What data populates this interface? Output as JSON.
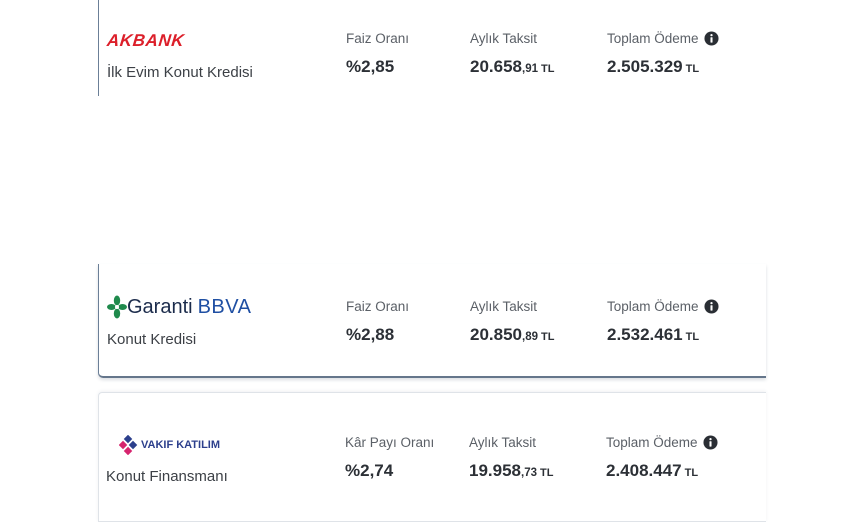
{
  "loans": [
    {
      "bank": "AKBANK",
      "product": "İlk Evim Konut Kredisi",
      "rate_label": "Faiz Oranı",
      "rate_value": "%2,85",
      "installment_label": "Aylık Taksit",
      "installment_int": "20.658",
      "installment_frac": ",91",
      "installment_unit": "TL",
      "total_label": "Toplam Ödeme",
      "total_value": "2.505.329",
      "total_unit": "TL"
    },
    {
      "bank_name": "Garanti",
      "bank_suffix": "BBVA",
      "product": "Konut Kredisi",
      "rate_label": "Faiz Oranı",
      "rate_value": "%2,88",
      "installment_label": "Aylık Taksit",
      "installment_int": "20.850",
      "installment_frac": ",89",
      "installment_unit": "TL",
      "total_label": "Toplam Ödeme",
      "total_value": "2.532.461",
      "total_unit": "TL"
    },
    {
      "bank": "VAKIF KATILIM",
      "product": "Konut Finansmanı",
      "rate_label": "Kâr Payı Oranı",
      "rate_value": "%2,74",
      "installment_label": "Aylık Taksit",
      "installment_int": "19.958",
      "installment_frac": ",73",
      "installment_unit": "TL",
      "total_label": "Toplam Ödeme",
      "total_value": "2.408.447",
      "total_unit": "TL"
    }
  ],
  "colors": {
    "akbank_red": "#dc1f2a",
    "garanti_green": "#1f8a4c",
    "bbva_blue": "#1f4fa3",
    "vakif_blue": "#2c3f8c",
    "vakif_pink": "#d6246e"
  },
  "icons": [
    "info-icon"
  ]
}
